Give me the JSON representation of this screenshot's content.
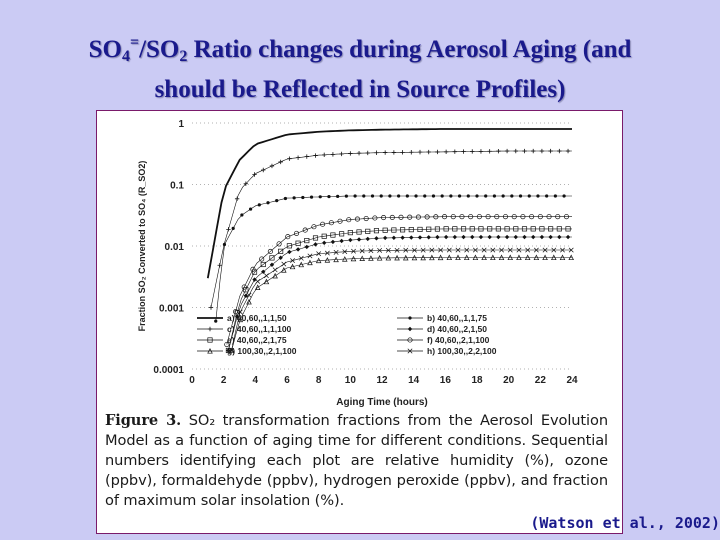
{
  "slide": {
    "title_line1_prefix": "SO",
    "title_sub_4": "4",
    "title_sup": "=",
    "title_slash_so": "/SO",
    "title_sub_2": "2",
    "title_line1_rest": " Ratio changes during Aerosol Aging (and",
    "title_line2": "should be Reflected in Source Profiles)",
    "citation": "(Watson et al., 2002)"
  },
  "figure": {
    "caption_label": "Figure 3.",
    "caption_text": "SO₂ transformation fractions from the Aerosol Evolution Model as a function of aging time for different conditions. Sequential numbers identifying each plot are relative humidity (%), ozone (ppbv), formaldehyde (ppbv), hydrogen peroxide (ppbv), and fraction of maximum solar insolation (%)."
  },
  "chart_data": {
    "type": "line",
    "xlabel": "Aging Time (hours)",
    "ylabel": "Fraction SO₂ Converted to SO₄ (R_SO2)",
    "xlim": [
      0,
      24
    ],
    "ylim": [
      0.0001,
      1
    ],
    "y_scale": "log",
    "x_ticks": [
      "0",
      "2",
      "4",
      "6",
      "8",
      "10",
      "12",
      "14",
      "16",
      "18",
      "20",
      "22",
      "24"
    ],
    "y_ticks": [
      "1",
      "0.1",
      "0.01",
      "0.001",
      "0.0001"
    ],
    "y_tick_values": [
      1,
      0.1,
      0.01,
      0.001,
      0.0001
    ],
    "grid": true,
    "legend_position": "bottom-right",
    "series": [
      {
        "name": "a) 40,60,,1,1,50",
        "marker": "solid",
        "x": [
          1,
          2,
          3,
          4,
          6,
          8,
          10,
          12,
          16,
          20,
          24
        ],
        "y": [
          0.003,
          0.08,
          0.25,
          0.45,
          0.65,
          0.72,
          0.76,
          0.78,
          0.8,
          0.8,
          0.8
        ]
      },
      {
        "name": "b) 40,60,,1,1,75",
        "marker": "dot",
        "x": [
          1.5,
          2,
          3,
          4,
          6,
          8,
          10,
          12,
          16,
          20,
          24
        ],
        "y": [
          0.0006,
          0.01,
          0.03,
          0.045,
          0.06,
          0.063,
          0.065,
          0.065,
          0.065,
          0.065,
          0.065
        ]
      },
      {
        "name": "c) 40,60,,1,1,100",
        "marker": "plus",
        "x": [
          1.2,
          2,
          3,
          4,
          6,
          8,
          10,
          12,
          16,
          20,
          24
        ],
        "y": [
          0.001,
          0.01,
          0.08,
          0.15,
          0.26,
          0.3,
          0.32,
          0.33,
          0.34,
          0.35,
          0.35
        ]
      },
      {
        "name": "d) 40,60,,2,1,50",
        "marker": "diamond",
        "x": [
          2.3,
          3,
          4,
          6,
          8,
          10,
          12,
          16,
          20,
          24
        ],
        "y": [
          0.0002,
          0.001,
          0.003,
          0.0078,
          0.011,
          0.0125,
          0.0135,
          0.014,
          0.014,
          0.014
        ]
      },
      {
        "name": "e) 40,60,,2,1,75",
        "marker": "square",
        "x": [
          2.3,
          3,
          4,
          6,
          8,
          10,
          12,
          16,
          20,
          24
        ],
        "y": [
          0.0002,
          0.0012,
          0.004,
          0.0098,
          0.014,
          0.0165,
          0.018,
          0.019,
          0.019,
          0.019
        ]
      },
      {
        "name": "f) 40,60,,2,1,100",
        "marker": "circle",
        "x": [
          2.2,
          3,
          4,
          6,
          8,
          10,
          12,
          16,
          20,
          24
        ],
        "y": [
          0.00025,
          0.0015,
          0.005,
          0.014,
          0.022,
          0.027,
          0.029,
          0.03,
          0.03,
          0.03
        ]
      },
      {
        "name": "g) 100,30,,2,1,100",
        "marker": "triangle",
        "x": [
          2.5,
          3,
          4,
          6,
          8,
          10,
          12,
          16,
          20,
          24
        ],
        "y": [
          0.0002,
          0.0006,
          0.002,
          0.0044,
          0.0058,
          0.0062,
          0.0064,
          0.0065,
          0.0065,
          0.0065
        ]
      },
      {
        "name": "h) 100,30,,2,2,100",
        "marker": "star",
        "x": [
          2.5,
          3,
          4,
          6,
          8,
          10,
          12,
          16,
          20,
          24
        ],
        "y": [
          0.0002,
          0.0008,
          0.0025,
          0.0055,
          0.0075,
          0.0082,
          0.0085,
          0.0086,
          0.0086,
          0.0086
        ]
      }
    ]
  }
}
